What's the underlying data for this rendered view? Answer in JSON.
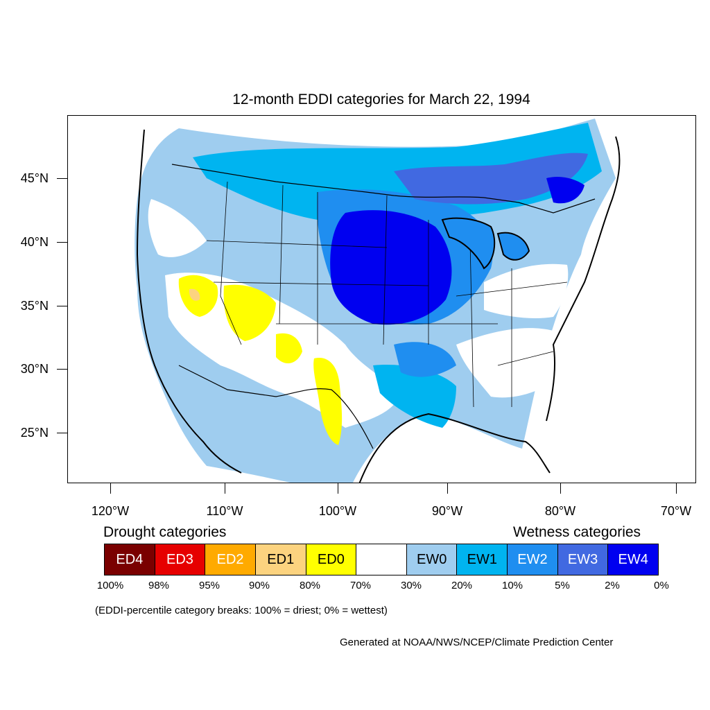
{
  "title": "12-month EDDI categories for March 22, 1994",
  "latitude_labels": [
    "45°N",
    "40°N",
    "35°N",
    "30°N",
    "25°N"
  ],
  "longitude_labels": [
    "120°W",
    "110°W",
    "100°W",
    "90°W",
    "80°W",
    "70°W"
  ],
  "legend": {
    "drought_heading": "Drought categories",
    "wetness_heading": "Wetness categories",
    "categories": [
      {
        "label": "ED4",
        "color": "#7a0000",
        "text_color": "#ffffff"
      },
      {
        "label": "ED3",
        "color": "#e60000",
        "text_color": "#ffffff"
      },
      {
        "label": "ED2",
        "color": "#ffaa00",
        "text_color": "#ffffff"
      },
      {
        "label": "ED1",
        "color": "#fcd37f",
        "text_color": "#000000"
      },
      {
        "label": "ED0",
        "color": "#ffff00",
        "text_color": "#000000"
      },
      {
        "label": "",
        "color": "#ffffff",
        "text_color": "#000000"
      },
      {
        "label": "EW0",
        "color": "#9fcdef",
        "text_color": "#000000"
      },
      {
        "label": "EW1",
        "color": "#00b4f0",
        "text_color": "#000000"
      },
      {
        "label": "EW2",
        "color": "#1f8ef0",
        "text_color": "#ffffff"
      },
      {
        "label": "EW3",
        "color": "#4169e1",
        "text_color": "#ffffff"
      },
      {
        "label": "EW4",
        "color": "#0000f0",
        "text_color": "#ffffff"
      }
    ],
    "percentile_labels": [
      "100%",
      "98%",
      "95%",
      "90%",
      "80%",
      "70%",
      "30%",
      "20%",
      "10%",
      "5%",
      "2%",
      "0%"
    ]
  },
  "note": "(EDDI-percentile category breaks: 100% = driest; 0% = wettest)",
  "credit": "Generated at NOAA/NWS/NCEP/Climate Prediction Center"
}
